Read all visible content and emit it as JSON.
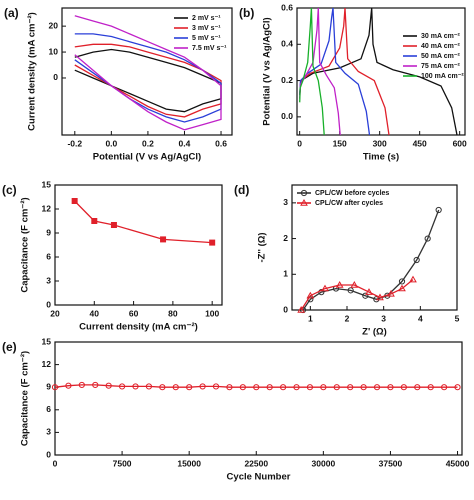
{
  "chart_data": [
    {
      "type": "line",
      "title": "(a)",
      "xlabel": "Potential (V vs Ag/AgCl)",
      "ylabel": "Current density (mA cm⁻²)",
      "xlim": [
        -0.27,
        0.66
      ],
      "xticks": [
        {
          "value": -0.2,
          "label": "-0.2"
        },
        {
          "value": 0,
          "label": "0.0"
        },
        0.2,
        0.4,
        0.6
      ],
      "ylim": [
        -22,
        27
      ],
      "yticks": [
        0,
        10,
        20
      ],
      "legend": "upper right",
      "series": [
        {
          "name": "2 mV s⁻¹",
          "color": "#111111",
          "x": [
            -0.2,
            -0.1,
            0,
            0.1,
            0.2,
            0.3,
            0.4,
            0.5,
            0.6,
            0.6,
            0.5,
            0.4,
            0.3,
            0.2,
            0.1,
            0,
            -0.1,
            -0.2
          ],
          "values": [
            8,
            10,
            11,
            10,
            8,
            6,
            4,
            1,
            -2,
            -8,
            -10,
            -13,
            -12,
            -9,
            -6,
            -3,
            0,
            3
          ]
        },
        {
          "name": "3 mV s⁻¹",
          "color": "#e0202a",
          "x": [
            -0.2,
            -0.1,
            0,
            0.1,
            0.2,
            0.3,
            0.4,
            0.5,
            0.6,
            0.6,
            0.5,
            0.4,
            0.3,
            0.2,
            0.1,
            0,
            -0.1,
            -0.2
          ],
          "values": [
            12,
            13,
            13,
            12,
            10,
            8,
            6,
            3,
            -1,
            -10,
            -12,
            -15,
            -14,
            -11,
            -7,
            -3,
            1,
            5
          ]
        },
        {
          "name": "5 mV s⁻¹",
          "color": "#2a3fd8",
          "x": [
            -0.2,
            -0.1,
            0,
            0.1,
            0.2,
            0.3,
            0.4,
            0.5,
            0.6,
            0.6,
            0.5,
            0.4,
            0.3,
            0.2,
            0.1,
            0,
            -0.1,
            -0.2
          ],
          "values": [
            17,
            17,
            16,
            14,
            12,
            10,
            7,
            3,
            -2,
            -12,
            -15,
            -17,
            -15,
            -12,
            -8,
            -3,
            2,
            7
          ]
        },
        {
          "name": "7.5 mV s⁻¹",
          "color": "#c021c8",
          "x": [
            -0.2,
            -0.1,
            0,
            0.1,
            0.2,
            0.3,
            0.4,
            0.5,
            0.6,
            0.6,
            0.5,
            0.4,
            0.3,
            0.2,
            0.1,
            0,
            -0.1,
            -0.2
          ],
          "values": [
            24,
            22,
            20,
            17,
            14,
            11,
            8,
            3,
            -3,
            -16,
            -18,
            -20,
            -17,
            -13,
            -8,
            -3,
            3,
            9
          ]
        }
      ]
    },
    {
      "type": "line",
      "title": "(b)",
      "xlabel": "Time (s)",
      "ylabel": "Potential (V vs Ag/AgCl)",
      "xlim": [
        -10,
        620
      ],
      "xticks": [
        0,
        150,
        300,
        450,
        600
      ],
      "ylim": [
        -0.1,
        0.6
      ],
      "yticks": [
        {
          "value": 0,
          "label": "0.0"
        },
        0.2,
        0.4,
        0.6
      ],
      "legend": "right",
      "series": [
        {
          "name": "30 mA cm⁻²",
          "color": "#111111",
          "x": [
            0,
            5,
            50,
            150,
            230,
            260,
            270,
            275,
            290,
            350,
            450,
            530,
            570,
            590
          ],
          "values": [
            0.12,
            0.2,
            0.24,
            0.27,
            0.32,
            0.45,
            0.6,
            0.4,
            0.3,
            0.26,
            0.22,
            0.17,
            0.05,
            -0.1
          ]
        },
        {
          "name": "40 mA cm⁻²",
          "color": "#e0202a",
          "x": [
            0,
            4,
            40,
            110,
            150,
            165,
            170,
            180,
            220,
            280,
            320,
            335
          ],
          "values": [
            0.12,
            0.2,
            0.24,
            0.28,
            0.38,
            0.5,
            0.6,
            0.32,
            0.25,
            0.2,
            0.05,
            -0.1
          ]
        },
        {
          "name": "50 mA cm⁻²",
          "color": "#2a3fd8",
          "x": [
            0,
            3,
            30,
            80,
            110,
            120,
            125,
            135,
            170,
            220,
            250,
            262
          ],
          "values": [
            0.12,
            0.2,
            0.24,
            0.29,
            0.42,
            0.55,
            0.6,
            0.3,
            0.24,
            0.18,
            0.03,
            -0.1
          ]
        },
        {
          "name": "75 mA cm⁻²",
          "color": "#c021c8",
          "x": [
            0,
            3,
            20,
            50,
            65,
            70,
            75,
            100,
            130,
            145,
            152
          ],
          "values": [
            0.1,
            0.18,
            0.22,
            0.3,
            0.48,
            0.6,
            0.3,
            0.23,
            0.16,
            0.02,
            -0.1
          ]
        },
        {
          "name": "100 mA cm⁻²",
          "color": "#18b02a",
          "x": [
            0,
            2,
            12,
            30,
            40,
            44,
            50,
            70,
            85,
            92
          ],
          "values": [
            0.08,
            0.16,
            0.2,
            0.3,
            0.5,
            0.6,
            0.28,
            0.2,
            0.05,
            -0.1
          ]
        }
      ]
    },
    {
      "type": "line",
      "title": "(c)",
      "xlabel": "Current density (mA cm⁻²)",
      "ylabel": "Capacitance (F cm⁻²)",
      "xlim": [
        20,
        105
      ],
      "xticks": [
        20,
        40,
        60,
        80,
        100
      ],
      "ylim": [
        0,
        15
      ],
      "yticks": [
        0,
        3,
        6,
        9,
        12,
        15
      ],
      "x": [
        30,
        40,
        50,
        75,
        100
      ],
      "values": [
        13,
        10.5,
        10,
        8.2,
        7.8
      ],
      "color": "#e0202a",
      "marker": "square"
    },
    {
      "type": "line",
      "title": "(d)",
      "xlabel": "Z' (Ω)",
      "ylabel": "-Z'' (Ω)",
      "xlim": [
        0.5,
        5
      ],
      "xticks": [
        1,
        2,
        3,
        4,
        5
      ],
      "ylim": [
        0,
        3.5
      ],
      "yticks": [
        0,
        1,
        2,
        3
      ],
      "legend": "upper left",
      "series": [
        {
          "name": "CPL/CW before cycles",
          "color": "#333333",
          "marker": "circle",
          "x": [
            0.8,
            1.0,
            1.3,
            1.7,
            2.1,
            2.5,
            2.8,
            3.1,
            3.5,
            3.9,
            4.2,
            4.5
          ],
          "values": [
            0,
            0.3,
            0.5,
            0.6,
            0.55,
            0.4,
            0.3,
            0.4,
            0.8,
            1.4,
            2.0,
            2.8
          ]
        },
        {
          "name": "CPL/CW after cycles",
          "color": "#e0202a",
          "marker": "triangle",
          "x": [
            0.75,
            1.0,
            1.4,
            1.8,
            2.2,
            2.6,
            2.9,
            3.2,
            3.5,
            3.8
          ],
          "values": [
            0,
            0.4,
            0.6,
            0.7,
            0.7,
            0.5,
            0.35,
            0.45,
            0.6,
            0.85
          ]
        }
      ]
    },
    {
      "type": "line",
      "title": "(e)",
      "xlabel": "Cycle Number",
      "ylabel": "Capacitance (F cm⁻²)",
      "xlim": [
        0,
        45500
      ],
      "xticks": [
        0,
        7500,
        15000,
        22500,
        30000,
        37500,
        45000
      ],
      "ylim": [
        0,
        15
      ],
      "yticks": [
        0,
        3,
        6,
        9,
        12,
        15
      ],
      "x": [
        0,
        1500,
        3000,
        4500,
        6000,
        7500,
        9000,
        10500,
        12000,
        13500,
        15000,
        16500,
        18000,
        19500,
        21000,
        22500,
        24000,
        25500,
        27000,
        28500,
        30000,
        31500,
        33000,
        34500,
        36000,
        37500,
        39000,
        40500,
        42000,
        43500,
        45000
      ],
      "values": [
        9.0,
        9.2,
        9.3,
        9.3,
        9.2,
        9.1,
        9.1,
        9.1,
        9.0,
        9.0,
        9.0,
        9.1,
        9.1,
        9.0,
        9.0,
        9.0,
        9.0,
        9.0,
        9.0,
        9.0,
        9.0,
        9.0,
        9.0,
        9.0,
        9.0,
        9.0,
        9.0,
        9.0,
        9.0,
        9.0,
        9.0
      ],
      "color": "#e0202a",
      "marker": "circle"
    }
  ]
}
